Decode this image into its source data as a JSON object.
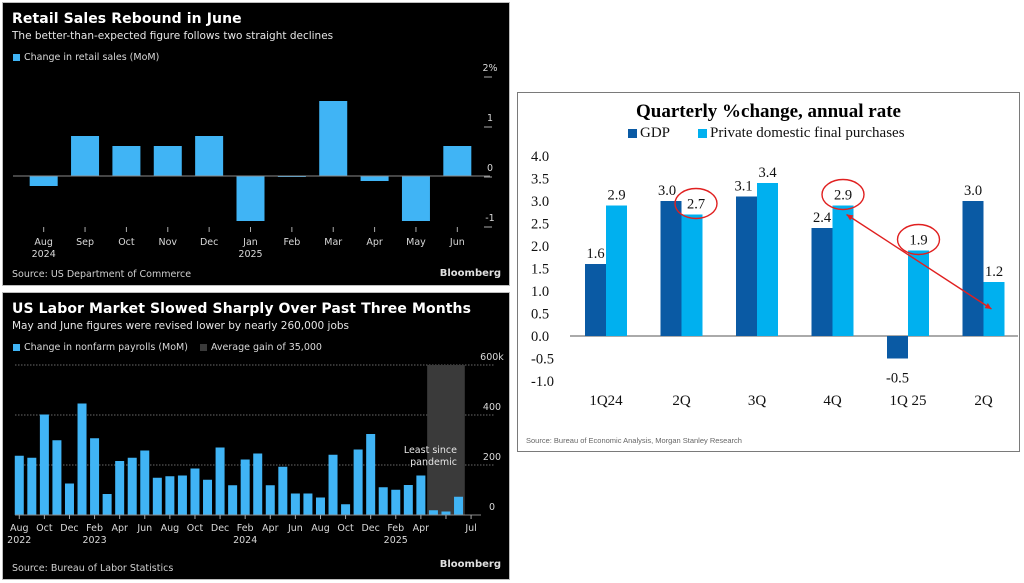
{
  "charts": {
    "retail": {
      "title": "Retail Sales Rebound in June",
      "subtitle": "The better-than-expected figure follows two straight declines",
      "legend": "Change in retail sales (MoM)",
      "source": "Source: US Department of Commerce",
      "brand": "Bloomberg"
    },
    "payrolls": {
      "title": "US Labor Market Slowed Sharply Over Past Three Months",
      "subtitle": "May and June figures were revised lower by nearly 260,000 jobs",
      "legend_series": "Change in nonfarm payrolls (MoM)",
      "legend_band": "Average gain of 35,000",
      "annotation_line1": "Least since",
      "annotation_line2": "pandemic",
      "source": "Source: Bureau of Labor Statistics",
      "brand": "Bloomberg"
    },
    "gdp": {
      "title": "Quarterly %change, annual rate",
      "legend_gdp": "GDP",
      "legend_pdfp": "Private domestic final purchases",
      "source": "Source: Bureau of Economic Analysis, Morgan Stanley Research"
    }
  },
  "colors": {
    "bloomberg_bar": "#40b4f5",
    "band": "#3a3a3a",
    "gdp_dark": "#0a5aa4",
    "pdfp_light": "#00b0ef",
    "annotation_red": "#e02020"
  },
  "chart_data": [
    {
      "type": "bar",
      "title": "Retail Sales Rebound in June",
      "categories": [
        "Aug 2024",
        "Sep",
        "Oct",
        "Nov",
        "Dec",
        "Jan 2025",
        "Feb",
        "Mar",
        "Apr",
        "May",
        "Jun"
      ],
      "tick_labels": [
        [
          "Aug",
          "2024"
        ],
        [
          "Sep",
          ""
        ],
        [
          "Oct",
          ""
        ],
        [
          "Nov",
          ""
        ],
        [
          "Dec",
          ""
        ],
        [
          "Jan",
          "2025"
        ],
        [
          "Feb",
          ""
        ],
        [
          "Mar",
          ""
        ],
        [
          "Apr",
          ""
        ],
        [
          "May",
          ""
        ],
        [
          "Jun",
          ""
        ]
      ],
      "series": [
        {
          "name": "Change in retail sales (MoM)",
          "values": [
            -0.2,
            0.8,
            0.6,
            0.6,
            0.8,
            -0.9,
            -0.01,
            1.5,
            -0.1,
            -0.9,
            0.6
          ]
        }
      ],
      "ylim": [
        -1.2,
        2
      ],
      "yticks": [
        2,
        1,
        0,
        -1
      ],
      "ytick_labels": [
        "2%",
        "1",
        "0",
        "-1"
      ],
      "ylabel": "",
      "xlabel": "",
      "grid": false,
      "legend": "top-left"
    },
    {
      "type": "bar",
      "title": "US Labor Market Slowed Sharply Over Past Three Months",
      "categories": [
        "Aug 2022",
        "Sep 2022",
        "Oct 2022",
        "Nov 2022",
        "Dec 2022",
        "Jan 2023",
        "Feb 2023",
        "Mar 2023",
        "Apr 2023",
        "May 2023",
        "Jun 2023",
        "Jul 2023",
        "Aug 2023",
        "Sep 2023",
        "Oct 2023",
        "Nov 2023",
        "Dec 2023",
        "Jan 2024",
        "Feb 2024",
        "Mar 2024",
        "Apr 2024",
        "May 2024",
        "Jun 2024",
        "Jul 2024",
        "Aug 2024",
        "Sep 2024",
        "Oct 2024",
        "Nov 2024",
        "Dec 2024",
        "Jan 2025",
        "Feb 2025",
        "Mar 2025",
        "Apr 2025",
        "May 2025",
        "Jun 2025",
        "Jul 2025"
      ],
      "tick_labels": [
        [
          "Aug",
          "2022"
        ],
        [
          "Oct",
          ""
        ],
        [
          "Dec",
          ""
        ],
        [
          "Feb",
          "2023"
        ],
        [
          "Apr",
          ""
        ],
        [
          "Jun",
          ""
        ],
        [
          "Aug",
          ""
        ],
        [
          "Oct",
          ""
        ],
        [
          "Dec",
          ""
        ],
        [
          "Feb",
          "2024"
        ],
        [
          "Apr",
          ""
        ],
        [
          "Jun",
          ""
        ],
        [
          "Aug",
          ""
        ],
        [
          "Oct",
          ""
        ],
        [
          "Dec",
          ""
        ],
        [
          "Feb",
          "2025"
        ],
        [
          "Apr",
          ""
        ],
        [
          "",
          ""
        ],
        [
          "Jul",
          ""
        ]
      ],
      "series": [
        {
          "name": "Change in nonfarm payrolls (MoM)",
          "values": [
            237,
            229,
            402,
            299,
            126,
            446,
            307,
            84,
            216,
            229,
            258,
            149,
            155,
            158,
            186,
            141,
            270,
            119,
            222,
            246,
            119,
            193,
            86,
            86,
            70,
            241,
            43,
            262,
            324,
            111,
            101,
            120,
            158,
            19,
            14,
            73
          ]
        }
      ],
      "highlight_band": {
        "label": "Average gain of 35,000",
        "from": "May 2025",
        "to": "Jul 2025"
      },
      "annotation": "Least since pandemic",
      "ylim": [
        0,
        600
      ],
      "yticks": [
        600,
        400,
        200,
        0
      ],
      "ytick_labels": [
        "600k",
        "400",
        "200",
        "0"
      ],
      "ylabel": "",
      "xlabel": "",
      "grid": true,
      "legend": "top-left"
    },
    {
      "type": "bar",
      "title": "Quarterly %change, annual rate",
      "categories": [
        "1Q24",
        "2Q",
        "3Q",
        "4Q",
        "1Q 25",
        "2Q"
      ],
      "series": [
        {
          "name": "GDP",
          "values": [
            1.6,
            3.0,
            3.1,
            2.4,
            -0.5,
            3.0
          ]
        },
        {
          "name": "Private domestic final purchases",
          "values": [
            2.9,
            2.7,
            3.4,
            2.9,
            1.9,
            1.2
          ]
        }
      ],
      "circled_labels": [
        [
          "Private domestic final purchases",
          "4Q"
        ],
        [
          "Private domestic final purchases",
          "1Q 25"
        ],
        [
          "Private domestic final purchases",
          "2Q"
        ]
      ],
      "arrow": {
        "from": "4Q",
        "to": "2Q",
        "series": "Private domestic final purchases"
      },
      "ylim": [
        -1.0,
        4.0
      ],
      "yticks": [
        4.0,
        3.5,
        3.0,
        2.5,
        2.0,
        1.5,
        1.0,
        0.5,
        0.0,
        -0.5,
        -1.0
      ],
      "ylabel": "",
      "xlabel": "",
      "grid": false,
      "legend": "top"
    }
  ]
}
